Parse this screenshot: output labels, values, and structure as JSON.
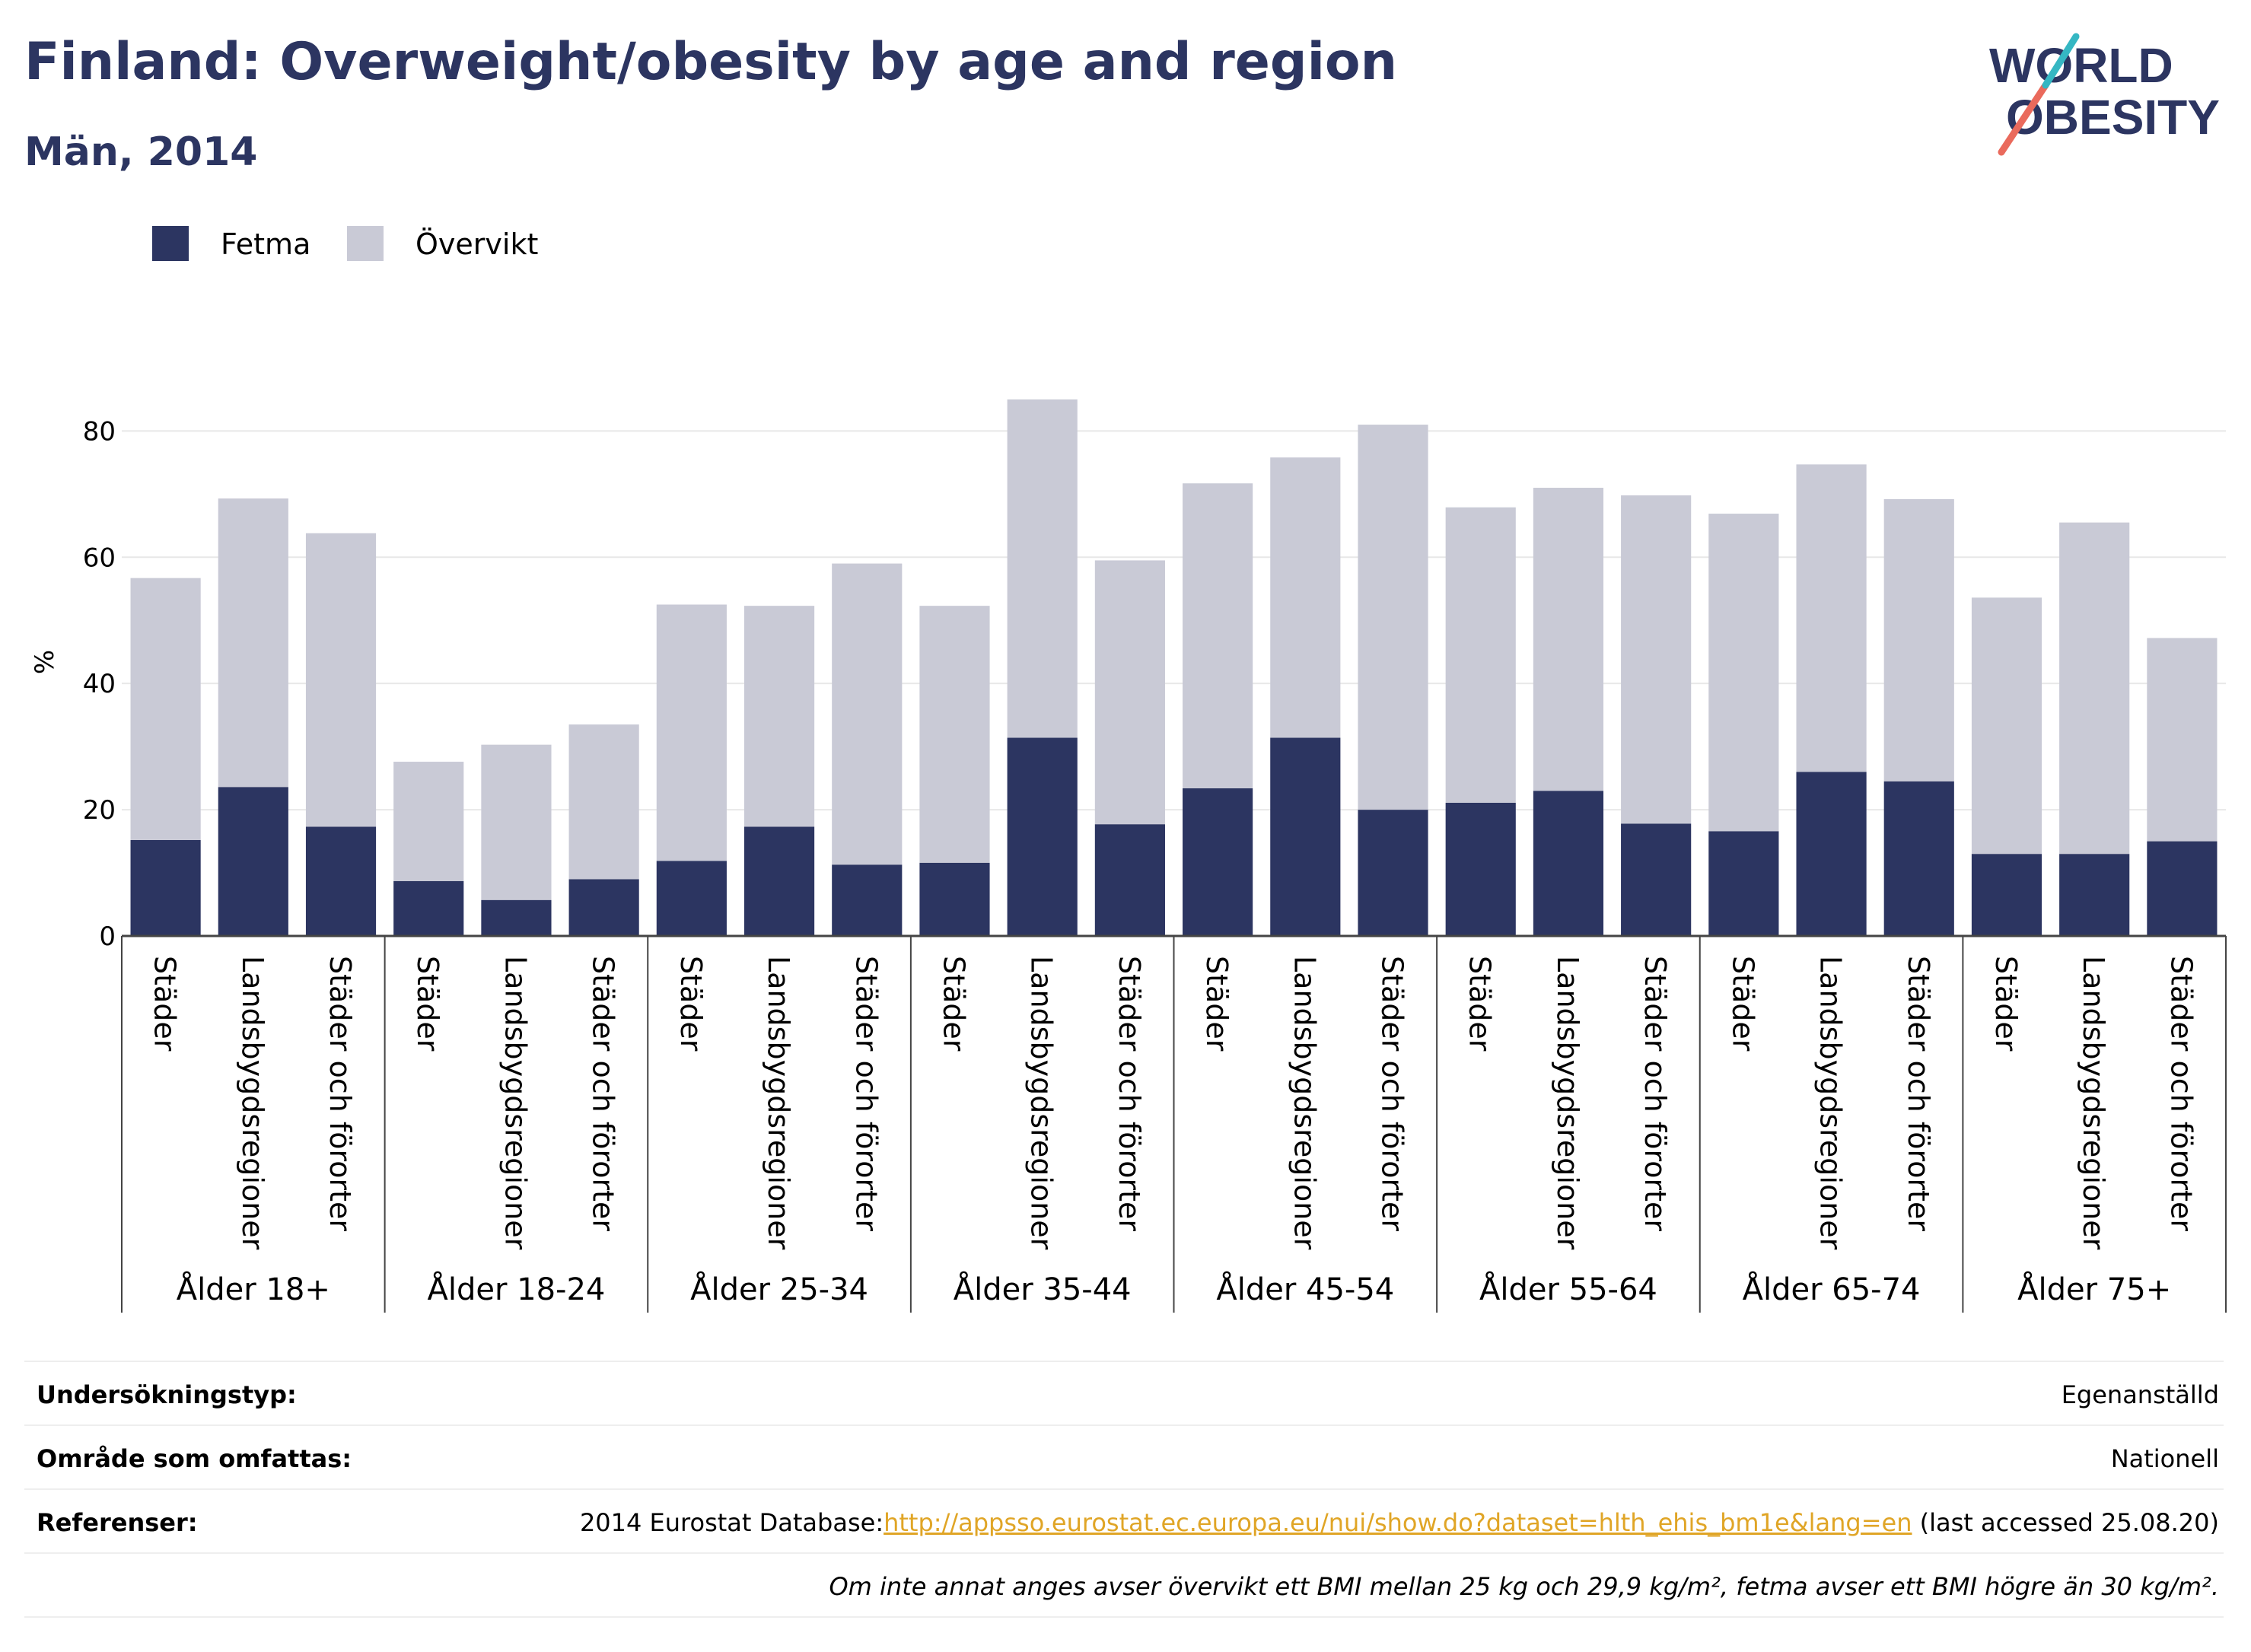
{
  "header": {
    "title": "Finland: Overweight/obesity by age and region",
    "subtitle": "Män, 2014"
  },
  "logo": {
    "line1": "WORLD",
    "line2": "OBESITY"
  },
  "colors": {
    "fetma": "#2c3561",
    "overvikt": "#c9cad6",
    "title": "#2c3561",
    "link": "#e0a526",
    "logo_teal": "#35b7c3",
    "logo_coral": "#ea6a5c"
  },
  "legend": [
    {
      "label": "Fetma",
      "color": "#2c3561"
    },
    {
      "label": "Övervikt",
      "color": "#c9cad6"
    }
  ],
  "chart_data": {
    "type": "bar",
    "stacked": true,
    "ylabel": "%",
    "ylim": [
      0,
      88
    ],
    "yticks": [
      0,
      20,
      40,
      60,
      80
    ],
    "grid": true,
    "legend_position": "top-left",
    "groups": [
      {
        "label": "Ålder 18+",
        "categories": [
          "Städer",
          "Landsbygdsregioner",
          "Städer och förorter"
        ]
      },
      {
        "label": "Ålder 18-24",
        "categories": [
          "Städer",
          "Landsbygdsregioner",
          "Städer och förorter"
        ]
      },
      {
        "label": "Ålder 25-34",
        "categories": [
          "Städer",
          "Landsbygdsregioner",
          "Städer och förorter"
        ]
      },
      {
        "label": "Ålder 35-44",
        "categories": [
          "Städer",
          "Landsbygdsregioner",
          "Städer och förorter"
        ]
      },
      {
        "label": "Ålder 45-54",
        "categories": [
          "Städer",
          "Landsbygdsregioner",
          "Städer och förorter"
        ]
      },
      {
        "label": "Ålder 55-64",
        "categories": [
          "Städer",
          "Landsbygdsregioner",
          "Städer och förorter"
        ]
      },
      {
        "label": "Ålder 65-74",
        "categories": [
          "Städer",
          "Landsbygdsregioner",
          "Städer och förorter"
        ]
      },
      {
        "label": "Ålder 75+",
        "categories": [
          "Städer",
          "Landsbygdsregioner",
          "Städer och förorter"
        ]
      }
    ],
    "series": [
      {
        "name": "Fetma",
        "values": [
          15.2,
          23.6,
          17.3,
          8.7,
          5.7,
          9.0,
          11.9,
          17.3,
          11.3,
          11.6,
          31.4,
          17.7,
          23.4,
          31.4,
          20.0,
          21.1,
          23.0,
          17.8,
          16.6,
          26.0,
          24.5,
          13.0,
          13.0,
          15.0
        ]
      },
      {
        "name": "Övervikt",
        "values": [
          41.5,
          45.7,
          46.5,
          18.9,
          24.6,
          24.5,
          40.6,
          35.0,
          47.7,
          40.7,
          53.6,
          41.8,
          48.3,
          44.4,
          61.0,
          46.8,
          48.0,
          52.0,
          50.3,
          48.7,
          44.7,
          40.6,
          52.5,
          32.2
        ]
      }
    ]
  },
  "info": {
    "survey_label": "Undersökningstyp:",
    "survey_value": "Egenanställd",
    "area_label": "Område som omfattas:",
    "area_value": "Nationell",
    "refs_label": "Referenser:",
    "refs_prefix": "2014 Eurostat Database:",
    "refs_link": "http://appsso.eurostat.ec.europa.eu/nui/show.do?dataset=hlth_ehis_bm1e&lang=en",
    "refs_suffix": " (last accessed 25.08.20)",
    "note": "Om inte annat anges avser övervikt ett BMI mellan 25 kg och 29,9 kg/m², fetma avser ett BMI högre än 30 kg/m²."
  }
}
